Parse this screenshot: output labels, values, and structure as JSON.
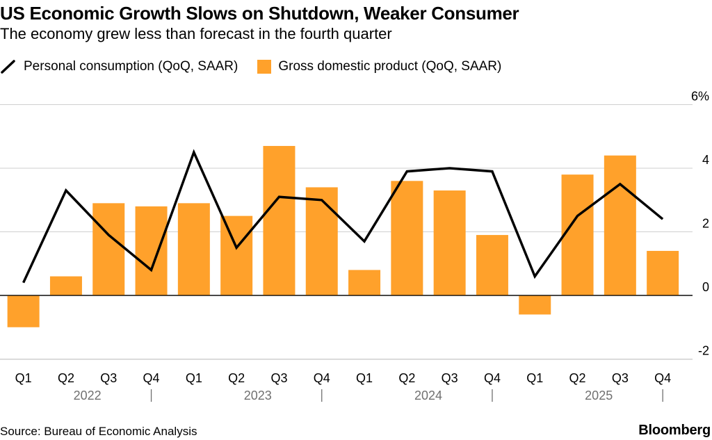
{
  "header": {
    "title": "US Economic Growth Slows on Shutdown, Weaker Consumer",
    "subtitle": "The economy grew less than forecast in the fourth quarter"
  },
  "legend": {
    "line_label": "Personal consumption (QoQ, SAAR)",
    "bar_label": "Gross domestic product (QoQ, SAAR)"
  },
  "footer": {
    "source": "Source: Bureau of Economic Analysis",
    "brand": "Bloomberg"
  },
  "colors": {
    "bar": "#ffa12b",
    "line": "#000000",
    "grid": "#cfcfcf",
    "year_label": "#707070"
  },
  "chart_data": {
    "type": "bar",
    "categories": [
      "Q1",
      "Q2",
      "Q3",
      "Q4",
      "Q1",
      "Q2",
      "Q3",
      "Q4",
      "Q1",
      "Q2",
      "Q3",
      "Q4",
      "Q1",
      "Q2",
      "Q3",
      "Q4"
    ],
    "years": [
      "2022",
      "2023",
      "2024",
      "2025"
    ],
    "series": [
      {
        "name": "Gross domestic product (QoQ, SAAR)",
        "type": "bar",
        "values": [
          -1.0,
          0.6,
          2.9,
          2.8,
          2.9,
          2.5,
          4.7,
          3.4,
          0.8,
          3.6,
          3.3,
          1.9,
          -0.6,
          3.8,
          4.4,
          1.4
        ]
      },
      {
        "name": "Personal consumption (QoQ, SAAR)",
        "type": "line",
        "values": [
          0.4,
          3.3,
          1.9,
          0.8,
          4.5,
          1.5,
          3.1,
          3.0,
          1.7,
          3.9,
          4.0,
          3.9,
          0.6,
          2.5,
          3.5,
          2.4
        ]
      }
    ],
    "ylim": [
      -2,
      6
    ],
    "yticks": [
      -2,
      0,
      2,
      4,
      6
    ],
    "ytick_labels": [
      "-2",
      "0",
      "2",
      "4",
      "6%"
    ],
    "grid": true,
    "legend_position": "top-left"
  }
}
